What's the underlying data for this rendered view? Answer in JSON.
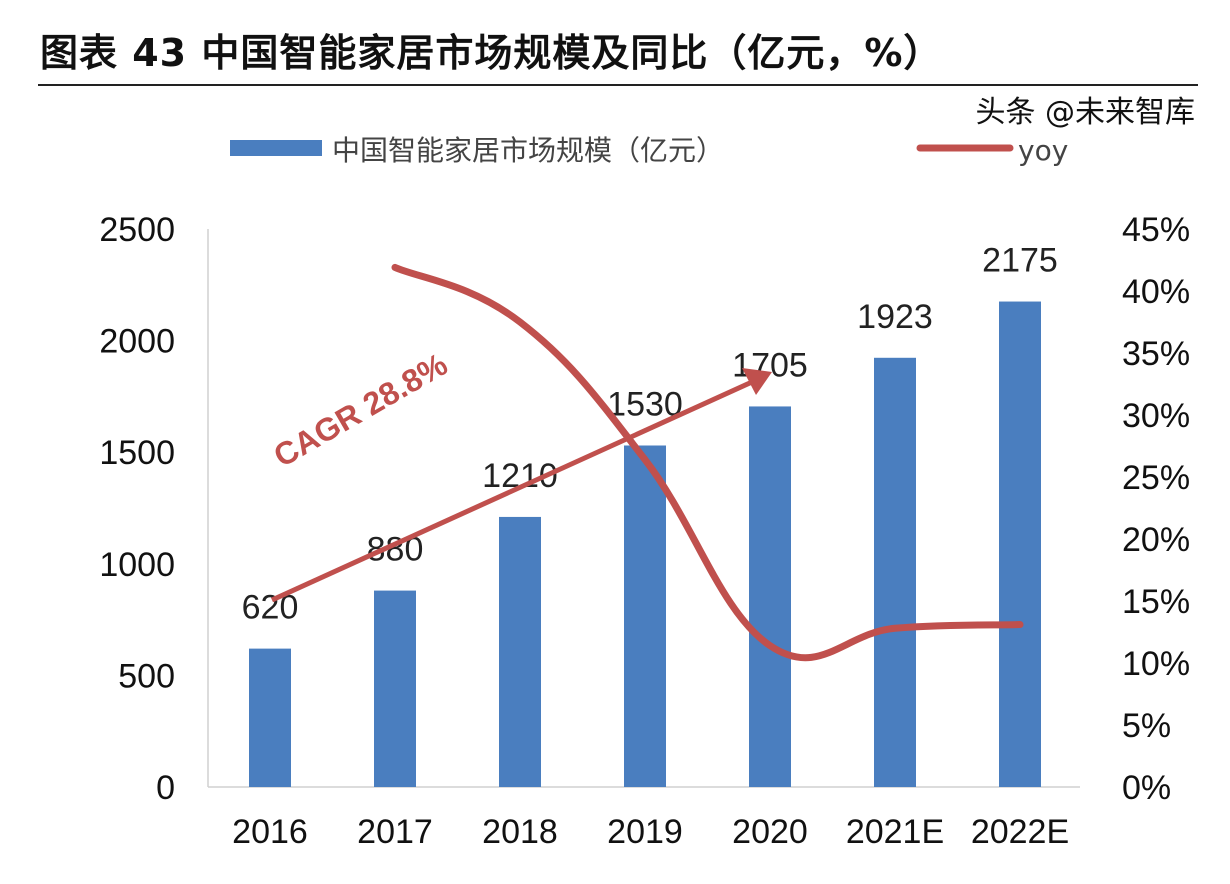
{
  "chart_data": {
    "type": "bar+line",
    "title": "图表43 中国智能家居市场规模及同比（亿元，%）",
    "categories": [
      "2016",
      "2017",
      "2018",
      "2019",
      "2020",
      "2021E",
      "2022E"
    ],
    "series": [
      {
        "name": "中国智能家居市场规模（亿元）",
        "type": "bar",
        "axis": "left",
        "color": "#4A7EBF",
        "values": [
          620,
          880,
          1210,
          1530,
          1705,
          1923,
          2175
        ]
      },
      {
        "name": "yoy",
        "type": "line",
        "axis": "right",
        "color": "#C0504D",
        "values": [
          null,
          41.9,
          37.5,
          26.4,
          11.4,
          12.8,
          13.1
        ]
      }
    ],
    "left_axis": {
      "min": 0,
      "max": 2500,
      "ticks": [
        "0",
        "500",
        "1000",
        "1500",
        "2000",
        "2500"
      ]
    },
    "right_axis": {
      "min": 0,
      "max": 45,
      "ticks": [
        "0%",
        "5%",
        "10%",
        "15%",
        "20%",
        "25%",
        "30%",
        "35%",
        "40%",
        "45%"
      ]
    },
    "annotation": "CAGR 28.8%",
    "legend_position": "top",
    "grid": false
  },
  "title": "图表 43 中国智能家居市场规模及同比（亿元，%）",
  "watermark": "头条 @未来智库"
}
